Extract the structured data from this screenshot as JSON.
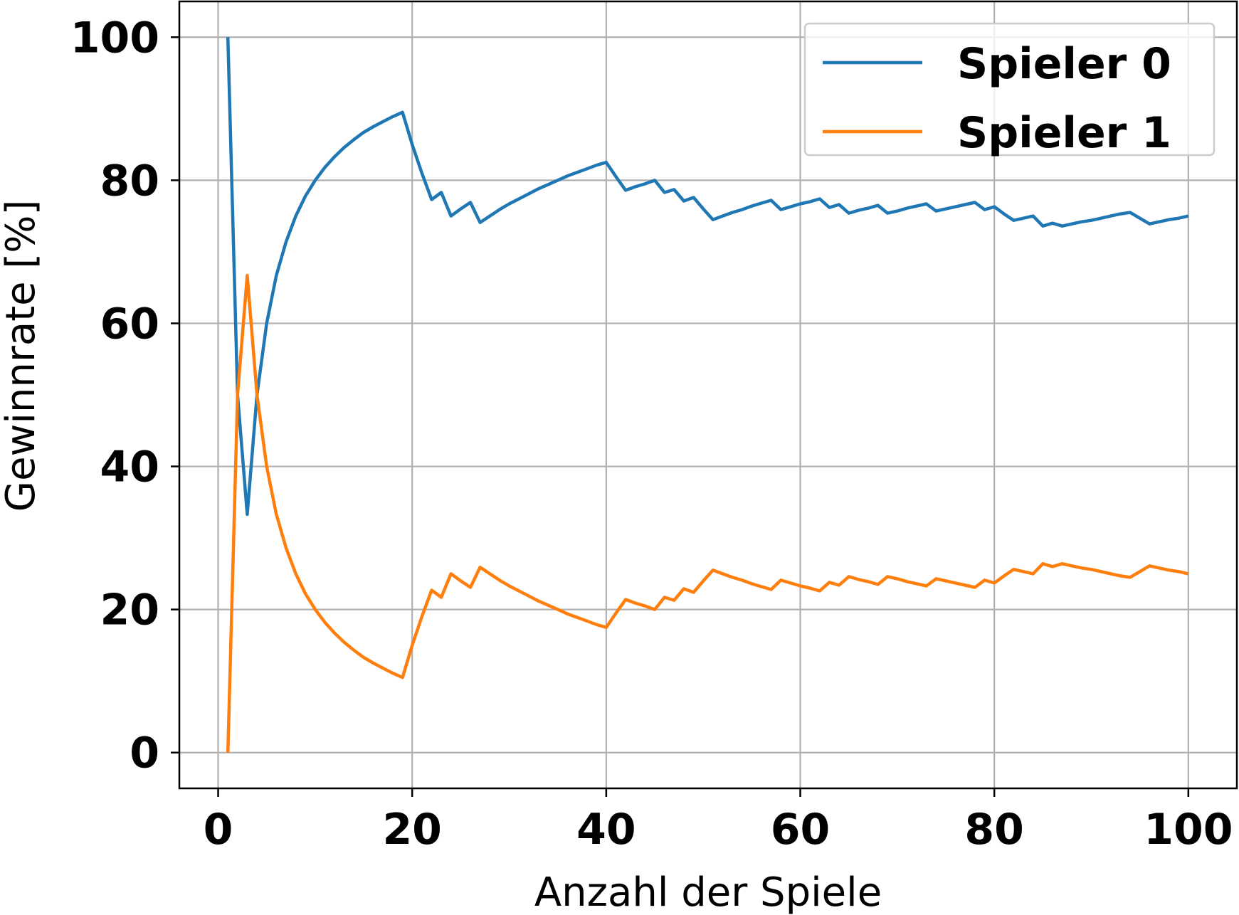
{
  "chart_data": {
    "type": "line",
    "xlabel": "Anzahl der Spiele",
    "ylabel": "Gewinnrate [%]",
    "xlim": [
      -4,
      105
    ],
    "ylim": [
      -5,
      105
    ],
    "xticks": [
      0,
      20,
      40,
      60,
      80,
      100
    ],
    "yticks": [
      0,
      20,
      40,
      60,
      80,
      100
    ],
    "grid": true,
    "legend_position": "top-right",
    "x": [
      1,
      2,
      3,
      4,
      5,
      6,
      7,
      8,
      9,
      10,
      11,
      12,
      13,
      14,
      15,
      16,
      17,
      18,
      19,
      20,
      21,
      22,
      23,
      24,
      25,
      26,
      27,
      28,
      29,
      30,
      31,
      32,
      33,
      34,
      35,
      36,
      37,
      38,
      39,
      40,
      41,
      42,
      43,
      44,
      45,
      46,
      47,
      48,
      49,
      50,
      51,
      52,
      53,
      54,
      55,
      56,
      57,
      58,
      59,
      60,
      61,
      62,
      63,
      64,
      65,
      66,
      67,
      68,
      69,
      70,
      71,
      72,
      73,
      74,
      75,
      76,
      77,
      78,
      79,
      80,
      81,
      82,
      83,
      84,
      85,
      86,
      87,
      88,
      89,
      90,
      91,
      92,
      93,
      94,
      95,
      96,
      97,
      98,
      99,
      100
    ],
    "series": [
      {
        "name": "Spieler 0",
        "color": "#1f77b4",
        "values": [
          100,
          50,
          33.3,
          50,
          60,
          66.7,
          71.4,
          75,
          77.8,
          80,
          81.8,
          83.3,
          84.6,
          85.7,
          86.7,
          87.5,
          88.2,
          88.9,
          89.5,
          85,
          81,
          77.3,
          78.3,
          75,
          76,
          76.9,
          74.1,
          75,
          75.9,
          76.7,
          77.4,
          78.1,
          78.8,
          79.4,
          80,
          80.6,
          81.1,
          81.6,
          82.1,
          82.5,
          80.5,
          78.6,
          79.1,
          79.5,
          80,
          78.3,
          78.7,
          77.1,
          77.6,
          76,
          74.5,
          75,
          75.5,
          75.9,
          76.4,
          76.8,
          77.2,
          75.9,
          76.3,
          76.7,
          77,
          77.4,
          76.2,
          76.6,
          75.4,
          75.8,
          76.1,
          76.5,
          75.4,
          75.7,
          76.1,
          76.4,
          76.7,
          75.7,
          76,
          76.3,
          76.6,
          76.9,
          75.9,
          76.3,
          75.3,
          74.4,
          74.7,
          75,
          73.6,
          74,
          73.6,
          73.9,
          74.2,
          74.4,
          74.7,
          75,
          75.3,
          75.5,
          74.7,
          73.9,
          74.2,
          74.5,
          74.7,
          75
        ]
      },
      {
        "name": "Spieler 1",
        "color": "#ff7f0e",
        "values": [
          0,
          50,
          66.7,
          50,
          40,
          33.3,
          28.6,
          25,
          22.2,
          20,
          18.2,
          16.7,
          15.4,
          14.3,
          13.3,
          12.5,
          11.8,
          11.1,
          10.5,
          15,
          19,
          22.7,
          21.7,
          25,
          24,
          23.1,
          25.9,
          25,
          24.1,
          23.3,
          22.6,
          21.9,
          21.2,
          20.6,
          20,
          19.4,
          18.9,
          18.4,
          17.9,
          17.5,
          19.5,
          21.4,
          20.9,
          20.5,
          20,
          21.7,
          21.3,
          22.9,
          22.4,
          24,
          25.5,
          25,
          24.5,
          24.1,
          23.6,
          23.2,
          22.8,
          24.1,
          23.7,
          23.3,
          23,
          22.6,
          23.8,
          23.4,
          24.6,
          24.2,
          23.9,
          23.5,
          24.6,
          24.3,
          23.9,
          23.6,
          23.3,
          24.3,
          24,
          23.7,
          23.4,
          23.1,
          24.1,
          23.7,
          24.7,
          25.6,
          25.3,
          25,
          26.4,
          26,
          26.4,
          26.1,
          25.8,
          25.6,
          25.3,
          25,
          24.7,
          24.5,
          25.3,
          26.1,
          25.8,
          25.5,
          25.3,
          25
        ]
      }
    ]
  }
}
